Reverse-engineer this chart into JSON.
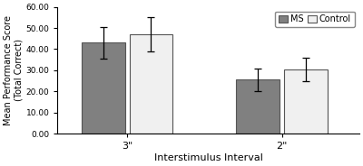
{
  "categories": [
    "3\"",
    "2\""
  ],
  "ms_values": [
    43.0,
    25.5
  ],
  "control_values": [
    47.0,
    30.5
  ],
  "ms_errors": [
    7.5,
    5.5
  ],
  "control_errors": [
    8.0,
    5.5
  ],
  "ms_color": "#808080",
  "control_color": "#f0f0f0",
  "bar_edge_color": "#555555",
  "bar_width": 0.28,
  "ylim": [
    0,
    60
  ],
  "yticks": [
    0.0,
    10.0,
    20.0,
    30.0,
    40.0,
    50.0,
    60.0
  ],
  "ylabel": "Mean Performance Score\n(Total Correct)",
  "xlabel": "Interstimulus Interval",
  "legend_labels": [
    "MS",
    "Control"
  ],
  "title": "",
  "figsize": [
    4.0,
    1.84
  ],
  "dpi": 100
}
